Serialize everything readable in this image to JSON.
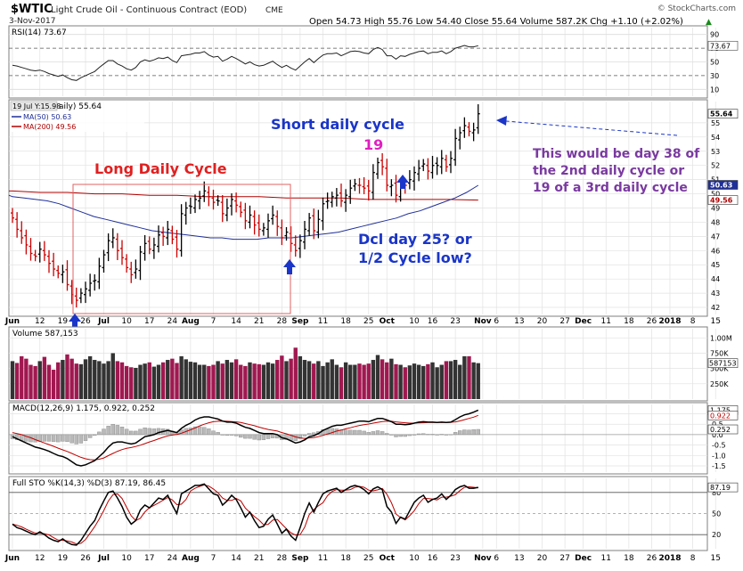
{
  "header": {
    "symbol": "$WTIC",
    "name": "Light Crude Oil - Continuous Contract (EOD)",
    "exchange": "CME",
    "watermark": "© StockCharts.com",
    "date": "3-Nov-2017",
    "quote": "Open 54.73  High 55.76  Low 54.40  Close 55.64  Volume 587.2K  Chg +1.10 (+2.02%)",
    "chg_arrow": "▲"
  },
  "colors": {
    "up_bar": "#000000",
    "down_bar": "#cc0000",
    "ma50": "#1f2f99",
    "ma200": "#b00000",
    "annotation_red": "#e02020",
    "annotation_blue": "#1a35c8",
    "annotation_purple": "#7a3aa0",
    "annotation_magenta": "#e020c0",
    "volume_up": "#333333",
    "volume_down": "#a01850",
    "grid": "#d8d8d8",
    "panel_border": "#7f7f7f"
  },
  "rsi": {
    "label": "RSI(14) 73.67",
    "value": 73.67,
    "ylim": [
      0,
      100
    ],
    "ticks": [
      "90",
      "70",
      "50",
      "30",
      "10"
    ],
    "tick_values": [
      90,
      70,
      50,
      30,
      10
    ],
    "badge": "73.67"
  },
  "price_panel": {
    "tooltip": "19 Jul Y:15.98",
    "legend_title": "aily) 55.64",
    "legend_ma50": "MA(50) 50.63",
    "legend_ma200": "MA(200) 49.56",
    "ylim": [
      41.5,
      56.5
    ],
    "ticks": [
      "55",
      "54",
      "53",
      "52",
      "51",
      "50",
      "49",
      "48",
      "47",
      "46",
      "45",
      "44",
      "43",
      "42"
    ],
    "tick_values": [
      55,
      54,
      53,
      52,
      51,
      50,
      49,
      48,
      47,
      46,
      45,
      44,
      43,
      42
    ],
    "badges": [
      {
        "text": "55.64",
        "value": 55.64,
        "bg": "#ffffff",
        "color": "#000000"
      },
      {
        "text": "50.63",
        "value": 50.63,
        "bg": "#1f2f99",
        "color": "#ffffff"
      },
      {
        "text": "49.56",
        "value": 49.56,
        "bg": "#ffffff",
        "color": "#b00000"
      }
    ]
  },
  "annotations": {
    "long_cycle": "Long Daily Cycle",
    "short_cycle": "Short daily cycle",
    "day19": "19",
    "dcl_line1": "Dcl day 25? or",
    "dcl_line2": "1/2 Cycle low?",
    "note_line1": "This would be day 38 of",
    "note_line2": "the 2nd daily cycle  or",
    "note_line3": "19 of a 3rd daily cycle"
  },
  "volume": {
    "label": "Volume 587,153",
    "ticks": [
      "1.00M",
      "750K",
      "500K",
      "250K"
    ],
    "tick_values": [
      1000000,
      750000,
      500000,
      250000
    ],
    "ylim": [
      0,
      1150000
    ],
    "badge": "587153"
  },
  "macd": {
    "label": "MACD(12,26,9) 1.175, 0.922, 0.252",
    "ticks": [
      "1.0",
      "0.5",
      "0.0",
      "-0.5",
      "-1.0",
      "-1.5"
    ],
    "tick_values": [
      1.0,
      0.5,
      0.0,
      -0.5,
      -1.0,
      -1.5
    ],
    "ylim": [
      -1.8,
      1.45
    ],
    "badges": [
      {
        "text": "1.175",
        "value": 1.175
      },
      {
        "text": "0.922",
        "value": 0.922
      },
      {
        "text": "0.252",
        "value": 0.252
      }
    ]
  },
  "sto": {
    "label": "Full STO %K(14,3) %D(3) 87.19, 86.45",
    "ticks": [
      "80",
      "50",
      "20"
    ],
    "tick_values": [
      80,
      50,
      20
    ],
    "ylim": [
      0,
      100
    ],
    "badge": "87.19"
  },
  "x_axis": {
    "labels": [
      {
        "text": "Jun",
        "bold": true,
        "i": 0
      },
      {
        "text": "12",
        "i": 6
      },
      {
        "text": "19",
        "i": 11
      },
      {
        "text": "26",
        "i": 16
      },
      {
        "text": "Jul",
        "bold": true,
        "i": 20
      },
      {
        "text": "10",
        "i": 25
      },
      {
        "text": "17",
        "i": 30
      },
      {
        "text": "24",
        "i": 35
      },
      {
        "text": "Aug",
        "bold": true,
        "i": 39
      },
      {
        "text": "7",
        "i": 44
      },
      {
        "text": "14",
        "i": 49
      },
      {
        "text": "21",
        "i": 54
      },
      {
        "text": "28",
        "i": 59
      },
      {
        "text": "Sep",
        "bold": true,
        "i": 63
      },
      {
        "text": "11",
        "i": 68
      },
      {
        "text": "18",
        "i": 73
      },
      {
        "text": "25",
        "i": 78
      },
      {
        "text": "Oct",
        "bold": true,
        "i": 82
      },
      {
        "text": "10",
        "i": 88
      },
      {
        "text": "16",
        "i": 92
      },
      {
        "text": "23",
        "i": 97
      },
      {
        "text": "Nov",
        "bold": true,
        "i": 103
      },
      {
        "text": "6",
        "i": 106
      },
      {
        "text": "13",
        "i": 111
      },
      {
        "text": "20",
        "i": 116
      },
      {
        "text": "27",
        "i": 121
      },
      {
        "text": "Dec",
        "bold": true,
        "i": 125
      },
      {
        "text": "11",
        "i": 130
      },
      {
        "text": "18",
        "i": 135
      },
      {
        "text": "26",
        "i": 140
      },
      {
        "text": "2018",
        "bold": true,
        "i": 144
      },
      {
        "text": "8",
        "i": 149
      },
      {
        "text": "15",
        "i": 154
      }
    ]
  },
  "chart_data": {
    "type": "ohlc",
    "title": "$WTIC Light Crude Oil - Continuous Contract (EOD) CME",
    "price_series_closes": [
      48.3,
      47.5,
      46.9,
      46.4,
      45.8,
      45.6,
      46.1,
      45.7,
      45.1,
      44.7,
      44.4,
      44.5,
      43.6,
      42.9,
      42.5,
      43.0,
      43.3,
      43.7,
      43.9,
      44.9,
      45.7,
      46.7,
      46.9,
      46.0,
      45.5,
      44.8,
      44.3,
      44.7,
      45.9,
      46.5,
      46.1,
      46.4,
      47.1,
      47.0,
      47.5,
      46.8,
      46.1,
      48.6,
      49.0,
      49.1,
      49.6,
      49.7,
      50.2,
      49.8,
      49.4,
      49.5,
      48.6,
      49.0,
      49.6,
      49.2,
      48.7,
      48.1,
      48.5,
      47.8,
      47.5,
      47.6,
      48.1,
      48.5,
      47.7,
      46.9,
      47.3,
      46.5,
      46.0,
      46.7,
      47.5,
      48.3,
      47.4,
      48.2,
      49.3,
      49.5,
      49.8,
      49.9,
      49.5,
      49.9,
      50.4,
      50.7,
      50.6,
      50.4,
      50.2,
      51.5,
      52.2,
      51.9,
      50.6,
      50.6,
      49.9,
      50.7,
      50.6,
      51.0,
      51.5,
      51.8,
      52.1,
      51.6,
      52.0,
      52.0,
      52.5,
      51.9,
      52.5,
      53.9,
      54.3,
      54.8,
      54.4,
      54.5,
      55.64
    ],
    "ma50_values": [
      49.8,
      49.7,
      49.6,
      49.5,
      49.3,
      49.0,
      48.7,
      48.4,
      48.2,
      48.0,
      47.8,
      47.6,
      47.4,
      47.3,
      47.2,
      47.1,
      47.0,
      46.9,
      46.9,
      46.8,
      46.8,
      46.8,
      46.9,
      46.9,
      46.9,
      47.0,
      47.1,
      47.2,
      47.3,
      47.5,
      47.7,
      47.9,
      48.1,
      48.3,
      48.6,
      48.8,
      49.1,
      49.4,
      49.7,
      50.1,
      50.6
    ],
    "ma200_values": [
      50.2,
      50.1,
      50.1,
      50.0,
      50.0,
      49.9,
      49.9,
      49.8,
      49.8,
      49.8,
      49.7,
      49.7,
      49.7,
      49.6,
      49.6,
      49.6,
      49.6,
      49.56
    ],
    "rsi_values": [
      45,
      44,
      42,
      40,
      38,
      37,
      38,
      36,
      33,
      31,
      29,
      31,
      27,
      24,
      23,
      27,
      30,
      33,
      36,
      42,
      47,
      52,
      52,
      47,
      44,
      40,
      38,
      42,
      50,
      53,
      51,
      53,
      56,
      55,
      57,
      52,
      49,
      59,
      60,
      61,
      63,
      63,
      65,
      60,
      57,
      58,
      51,
      54,
      58,
      55,
      51,
      47,
      50,
      46,
      44,
      45,
      48,
      51,
      46,
      42,
      45,
      41,
      38,
      44,
      50,
      55,
      49,
      55,
      60,
      62,
      62,
      63,
      59,
      62,
      65,
      66,
      65,
      63,
      62,
      68,
      71,
      68,
      59,
      59,
      54,
      59,
      58,
      61,
      63,
      65,
      66,
      62,
      64,
      64,
      66,
      62,
      65,
      70,
      72,
      74,
      72,
      72,
      73.67
    ],
    "volume_values": [
      620000,
      590000,
      700000,
      660000,
      560000,
      540000,
      620000,
      690000,
      560000,
      480000,
      600000,
      640000,
      730000,
      660000,
      580000,
      570000,
      650000,
      700000,
      640000,
      620000,
      580000,
      620000,
      750000,
      620000,
      600000,
      540000,
      520000,
      510000,
      560000,
      580000,
      600000,
      530000,
      560000,
      600000,
      640000,
      660000,
      590000,
      700000,
      650000,
      610000,
      600000,
      560000,
      560000,
      540000,
      560000,
      620000,
      580000,
      640000,
      600000,
      650000,
      560000,
      540000,
      600000,
      580000,
      570000,
      560000,
      600000,
      580000,
      640000,
      710000,
      620000,
      660000,
      840000,
      700000,
      640000,
      620000,
      580000,
      620000,
      540000,
      600000,
      650000,
      560000,
      520000,
      600000,
      560000,
      560000,
      580000,
      560000,
      580000,
      640000,
      720000,
      650000,
      600000,
      660000,
      570000,
      560000,
      520000,
      550000,
      580000,
      560000,
      540000,
      570000,
      600000,
      520000,
      560000,
      620000,
      620000,
      640000,
      560000,
      700000,
      700000,
      600000,
      587153
    ],
    "macd_line": [
      -0.1,
      -0.2,
      -0.3,
      -0.4,
      -0.5,
      -0.6,
      -0.65,
      -0.72,
      -0.8,
      -0.9,
      -1.0,
      -1.05,
      -1.15,
      -1.3,
      -1.45,
      -1.5,
      -1.45,
      -1.35,
      -1.25,
      -1.05,
      -0.85,
      -0.6,
      -0.4,
      -0.35,
      -0.35,
      -0.4,
      -0.45,
      -0.4,
      -0.25,
      -0.1,
      -0.05,
      0.0,
      0.1,
      0.15,
      0.2,
      0.15,
      0.1,
      0.3,
      0.45,
      0.55,
      0.7,
      0.8,
      0.85,
      0.85,
      0.8,
      0.75,
      0.65,
      0.6,
      0.6,
      0.55,
      0.45,
      0.35,
      0.3,
      0.2,
      0.1,
      0.05,
      0.05,
      0.05,
      0.0,
      -0.15,
      -0.2,
      -0.3,
      -0.4,
      -0.35,
      -0.25,
      -0.1,
      -0.05,
      0.05,
      0.2,
      0.3,
      0.4,
      0.45,
      0.45,
      0.5,
      0.55,
      0.6,
      0.65,
      0.65,
      0.62,
      0.7,
      0.78,
      0.78,
      0.7,
      0.62,
      0.5,
      0.5,
      0.48,
      0.5,
      0.55,
      0.6,
      0.62,
      0.6,
      0.6,
      0.58,
      0.6,
      0.58,
      0.6,
      0.72,
      0.85,
      0.95,
      1.0,
      1.08,
      1.175
    ],
    "macd_signal": [
      0.1,
      0.05,
      0.0,
      -0.08,
      -0.15,
      -0.24,
      -0.32,
      -0.4,
      -0.48,
      -0.56,
      -0.65,
      -0.73,
      -0.81,
      -0.9,
      -1.0,
      -1.09,
      -1.16,
      -1.2,
      -1.21,
      -1.18,
      -1.12,
      -1.01,
      -0.9,
      -0.8,
      -0.72,
      -0.66,
      -0.62,
      -0.57,
      -0.51,
      -0.43,
      -0.35,
      -0.28,
      -0.2,
      -0.13,
      -0.06,
      -0.02,
      0.01,
      0.07,
      0.15,
      0.23,
      0.32,
      0.42,
      0.5,
      0.57,
      0.62,
      0.64,
      0.65,
      0.64,
      0.63,
      0.61,
      0.58,
      0.53,
      0.48,
      0.43,
      0.36,
      0.3,
      0.25,
      0.21,
      0.17,
      0.1,
      0.04,
      -0.03,
      -0.11,
      -0.16,
      -0.18,
      -0.16,
      -0.14,
      -0.1,
      -0.04,
      0.03,
      0.1,
      0.17,
      0.22,
      0.28,
      0.33,
      0.39,
      0.44,
      0.48,
      0.51,
      0.55,
      0.59,
      0.63,
      0.64,
      0.64,
      0.61,
      0.59,
      0.57,
      0.55,
      0.55,
      0.56,
      0.57,
      0.58,
      0.58,
      0.58,
      0.58,
      0.58,
      0.59,
      0.61,
      0.66,
      0.72,
      0.78,
      0.84,
      0.922
    ],
    "macd_histogram_last": 0.252,
    "sto_k": [
      35,
      30,
      28,
      25,
      22,
      20,
      24,
      20,
      15,
      12,
      10,
      14,
      9,
      6,
      5,
      12,
      22,
      32,
      40,
      55,
      68,
      80,
      82,
      72,
      60,
      45,
      35,
      40,
      55,
      62,
      58,
      65,
      72,
      70,
      76,
      62,
      50,
      78,
      82,
      86,
      90,
      90,
      92,
      85,
      78,
      76,
      62,
      68,
      76,
      70,
      58,
      45,
      52,
      40,
      30,
      32,
      42,
      48,
      35,
      22,
      28,
      18,
      12,
      30,
      50,
      65,
      52,
      66,
      78,
      82,
      84,
      86,
      80,
      84,
      88,
      90,
      88,
      84,
      78,
      85,
      88,
      84,
      60,
      52,
      36,
      45,
      42,
      54,
      66,
      72,
      76,
      66,
      70,
      72,
      78,
      70,
      76,
      84,
      88,
      90,
      86,
      86,
      87.19
    ],
    "sto_d_last": 86.45,
    "price_ylim": [
      41.5,
      56.5
    ],
    "rsi_ylim": [
      0,
      100
    ],
    "x_start": "2017-05-31",
    "x_end": "2018-01-19"
  }
}
